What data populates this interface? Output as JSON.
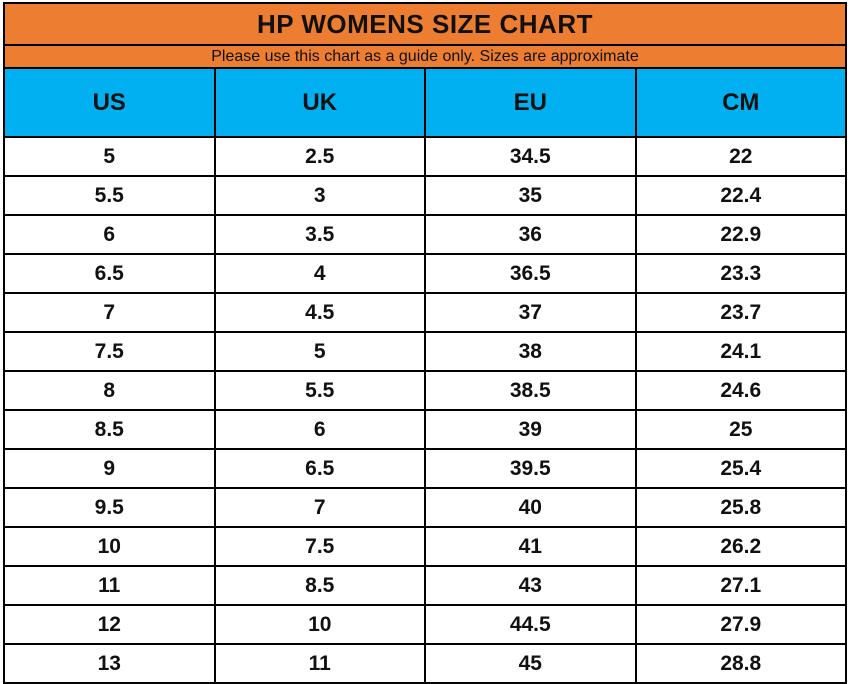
{
  "page": {
    "title": "HP WOMENS SIZE CHART",
    "subtitle": "Please use this chart as a guide only. Sizes are approximate"
  },
  "colors": {
    "title_bar_orange": "#ED7D31",
    "header_row_blue": "#00B0F0",
    "grid_border_black": "#000000",
    "data_row_white": "#FFFFFF",
    "text_black": "#111111"
  },
  "chart_data": {
    "type": "table",
    "title": "HP WOMENS SIZE CHART",
    "subtitle": "Please use this chart as a guide only. Sizes are approximate",
    "columns": [
      "US",
      "UK",
      "EU",
      "CM"
    ],
    "rows": [
      [
        "5",
        "2.5",
        "34.5",
        "22"
      ],
      [
        "5.5",
        "3",
        "35",
        "22.4"
      ],
      [
        "6",
        "3.5",
        "36",
        "22.9"
      ],
      [
        "6.5",
        "4",
        "36.5",
        "23.3"
      ],
      [
        "7",
        "4.5",
        "37",
        "23.7"
      ],
      [
        "7.5",
        "5",
        "38",
        "24.1"
      ],
      [
        "8",
        "5.5",
        "38.5",
        "24.6"
      ],
      [
        "8.5",
        "6",
        "39",
        "25"
      ],
      [
        "9",
        "6.5",
        "39.5",
        "25.4"
      ],
      [
        "9.5",
        "7",
        "40",
        "25.8"
      ],
      [
        "10",
        "7.5",
        "41",
        "26.2"
      ],
      [
        "11",
        "8.5",
        "43",
        "27.1"
      ],
      [
        "12",
        "10",
        "44.5",
        "27.9"
      ],
      [
        "13",
        "11",
        "45",
        "28.8"
      ]
    ]
  }
}
